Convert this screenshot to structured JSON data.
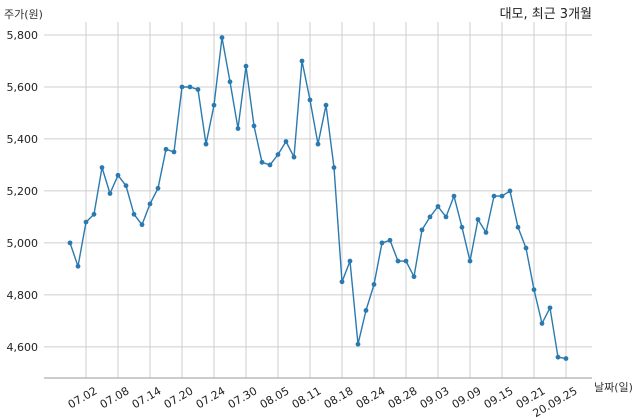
{
  "chart_data": {
    "type": "line",
    "title": "대모, 최근 3개월",
    "ylabel": "주가(원)",
    "xlabel": "날짜(일)",
    "ylim": [
      4480,
      5850
    ],
    "y_ticks": [
      4600,
      4800,
      5000,
      5200,
      5400,
      5600,
      5800
    ],
    "y_tick_labels": [
      "4,600",
      "4,800",
      "5,000",
      "5,200",
      "5,400",
      "5,600",
      "5,800"
    ],
    "x_tick_labels": [
      "07.02",
      "07.08",
      "07.14",
      "07.20",
      "07.24",
      "07.30",
      "08.05",
      "08.11",
      "08.18",
      "08.24",
      "08.28",
      "09.03",
      "09.09",
      "09.15",
      "09.21",
      "20.09.25"
    ],
    "x_tick_positions": [
      2,
      6,
      10,
      14,
      18,
      22,
      26,
      30,
      34,
      38,
      42,
      46,
      50,
      54,
      58,
      62
    ],
    "grid": true,
    "line_color": "#2a7ab0",
    "series": [
      {
        "values": [
          5000,
          4910,
          5080,
          5110,
          5290,
          5190,
          5260,
          5220,
          5110,
          5070,
          5150,
          5210,
          5360,
          5350,
          5600,
          5600,
          5590,
          5380,
          5530,
          5790,
          5620,
          5440,
          5680,
          5450,
          5310,
          5300,
          5340,
          5390,
          5330,
          5700,
          5550,
          5380,
          5530,
          5290,
          4850,
          4930,
          4610,
          4740,
          4840,
          5000,
          5010,
          4930,
          4930,
          4870,
          5050,
          5100,
          5140,
          5100,
          5180,
          5060,
          4930,
          5090,
          5040,
          5180,
          5180,
          5200,
          5060,
          4980,
          4820,
          4690,
          4750,
          4560,
          4555
        ]
      }
    ]
  }
}
